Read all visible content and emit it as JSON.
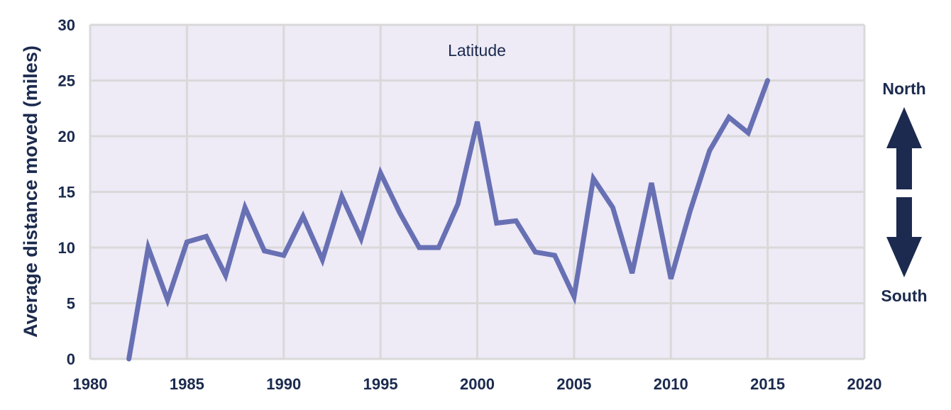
{
  "chart_data": {
    "type": "line",
    "title": "Latitude",
    "xlabel": "",
    "ylabel": "Average distance moved (miles)",
    "xlim": [
      1980,
      2020
    ],
    "ylim": [
      0,
      30
    ],
    "xticks": [
      1980,
      1985,
      1990,
      1995,
      2000,
      2005,
      2010,
      2015,
      2020
    ],
    "yticks": [
      0,
      5,
      10,
      15,
      20,
      25,
      30
    ],
    "grid": true,
    "series": [
      {
        "x": [
          1982,
          1983,
          1984,
          1985,
          1986,
          1987,
          1988,
          1989,
          1990,
          1991,
          1992,
          1993,
          1994,
          1995,
          1996,
          1997,
          1998,
          1999,
          2000,
          2001,
          2002,
          2003,
          2004,
          2005,
          2006,
          2007,
          2008,
          2009,
          2010,
          2011,
          2012,
          2013,
          2014,
          2015
        ],
        "values": [
          0,
          10,
          5.3,
          10.5,
          11,
          7.5,
          13.6,
          9.7,
          9.3,
          12.8,
          8.9,
          14.6,
          10.8,
          16.7,
          13.1,
          10,
          10,
          13.9,
          21.3,
          12.2,
          12.4,
          9.6,
          9.3,
          5.6,
          16.2,
          13.6,
          7.7,
          15.8,
          7.2,
          13.3,
          18.7,
          21.7,
          20.3,
          25
        ]
      }
    ],
    "direction_indicator": {
      "up_label": "North",
      "down_label": "South"
    },
    "colors": {
      "line": "#6870b4",
      "plot_background": "#eeeaf6",
      "grid": "#d9d9d9",
      "text": "#1b2a4e",
      "arrows": "#1b2a4e"
    }
  }
}
